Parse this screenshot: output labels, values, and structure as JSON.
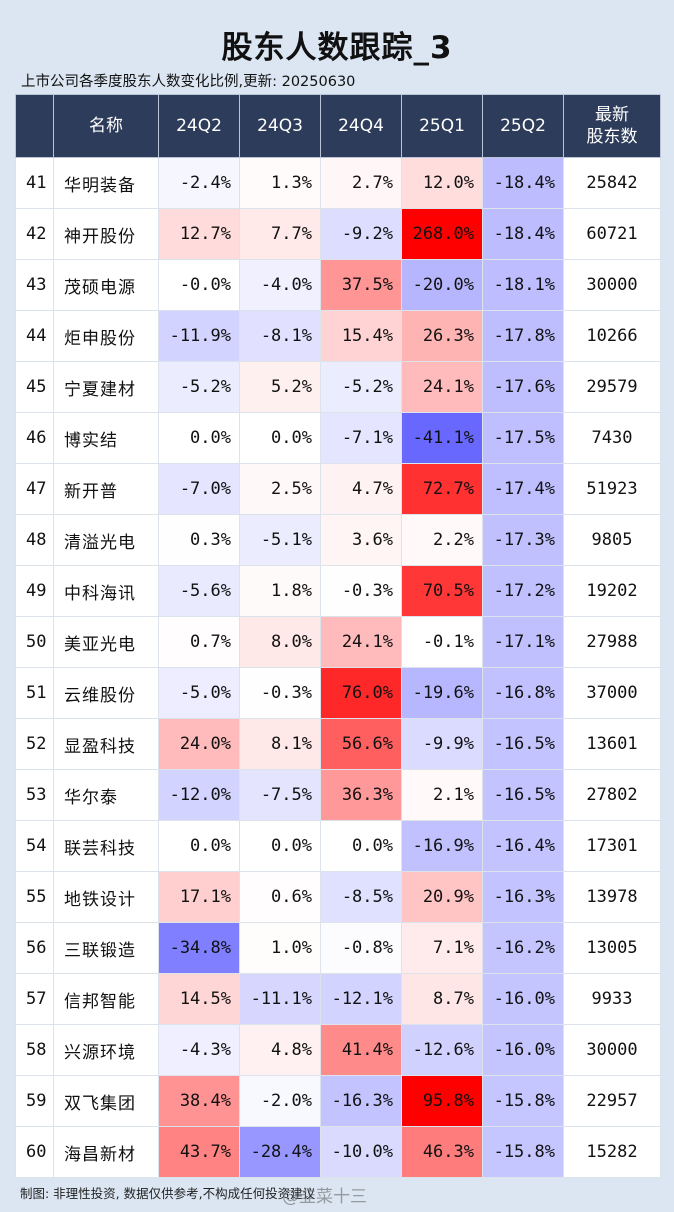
{
  "title": "股东人数跟踪_3",
  "subtitle": "上市公司各季度股东人数变化比例,更新: 20250630",
  "footer": "制图: 非理性投资, 数据仅供参考,不构成任何投资建议",
  "watermark": "@韭菜十三",
  "colors": {
    "header_bg": "#2d3c5a",
    "positive": "#ff0000",
    "negative": "#5a5aff"
  },
  "chart_data": {
    "type": "table",
    "columns": [
      "名称",
      "24Q2",
      "24Q3",
      "24Q4",
      "25Q1",
      "25Q2",
      "最新\n股东数"
    ],
    "rows": [
      {
        "idx": "41",
        "name": "华明装备",
        "vals": [
          -2.4,
          1.3,
          2.7,
          12.0,
          -18.4
        ],
        "count": "25842"
      },
      {
        "idx": "42",
        "name": "神开股份",
        "vals": [
          12.7,
          7.7,
          -9.2,
          268.0,
          -18.4
        ],
        "count": "60721"
      },
      {
        "idx": "43",
        "name": "茂硕电源",
        "vals": [
          -0.0,
          -4.0,
          37.5,
          -20.0,
          -18.1
        ],
        "count": "30000"
      },
      {
        "idx": "44",
        "name": "炬申股份",
        "vals": [
          -11.9,
          -8.1,
          15.4,
          26.3,
          -17.8
        ],
        "count": "10266"
      },
      {
        "idx": "45",
        "name": "宁夏建材",
        "vals": [
          -5.2,
          5.2,
          -5.2,
          24.1,
          -17.6
        ],
        "count": "29579"
      },
      {
        "idx": "46",
        "name": "博实结",
        "vals": [
          0.0,
          0.0,
          -7.1,
          -41.1,
          -17.5
        ],
        "count": "7430"
      },
      {
        "idx": "47",
        "name": "新开普",
        "vals": [
          -7.0,
          2.5,
          4.7,
          72.7,
          -17.4
        ],
        "count": "51923"
      },
      {
        "idx": "48",
        "name": "清溢光电",
        "vals": [
          0.3,
          -5.1,
          3.6,
          2.2,
          -17.3
        ],
        "count": "9805"
      },
      {
        "idx": "49",
        "name": "中科海讯",
        "vals": [
          -5.6,
          1.8,
          -0.3,
          70.5,
          -17.2
        ],
        "count": "19202"
      },
      {
        "idx": "50",
        "name": "美亚光电",
        "vals": [
          0.7,
          8.0,
          24.1,
          -0.1,
          -17.1
        ],
        "count": "27988"
      },
      {
        "idx": "51",
        "name": "云维股份",
        "vals": [
          -5.0,
          -0.3,
          76.0,
          -19.6,
          -16.8
        ],
        "count": "37000"
      },
      {
        "idx": "52",
        "name": "显盈科技",
        "vals": [
          24.0,
          8.1,
          56.6,
          -9.9,
          -16.5
        ],
        "count": "13601"
      },
      {
        "idx": "53",
        "name": "华尔泰",
        "vals": [
          -12.0,
          -7.5,
          36.3,
          2.1,
          -16.5
        ],
        "count": "27802"
      },
      {
        "idx": "54",
        "name": "联芸科技",
        "vals": [
          0.0,
          0.0,
          0.0,
          -16.9,
          -16.4
        ],
        "count": "17301"
      },
      {
        "idx": "55",
        "name": "地铁设计",
        "vals": [
          17.1,
          0.6,
          -8.5,
          20.9,
          -16.3
        ],
        "count": "13978"
      },
      {
        "idx": "56",
        "name": "三联锻造",
        "vals": [
          -34.8,
          1.0,
          -0.8,
          7.1,
          -16.2
        ],
        "count": "13005"
      },
      {
        "idx": "57",
        "name": "信邦智能",
        "vals": [
          14.5,
          -11.1,
          -12.1,
          8.7,
          -16.0
        ],
        "count": "9933"
      },
      {
        "idx": "58",
        "name": "兴源环境",
        "vals": [
          -4.3,
          4.8,
          41.4,
          -12.6,
          -16.0
        ],
        "count": "30000"
      },
      {
        "idx": "59",
        "name": "双飞集团",
        "vals": [
          38.4,
          -2.0,
          -16.3,
          95.8,
          -15.8
        ],
        "count": "22957"
      },
      {
        "idx": "60",
        "name": "海昌新材",
        "vals": [
          43.7,
          -28.4,
          -10.0,
          46.3,
          -15.8
        ],
        "count": "15282"
      }
    ]
  }
}
